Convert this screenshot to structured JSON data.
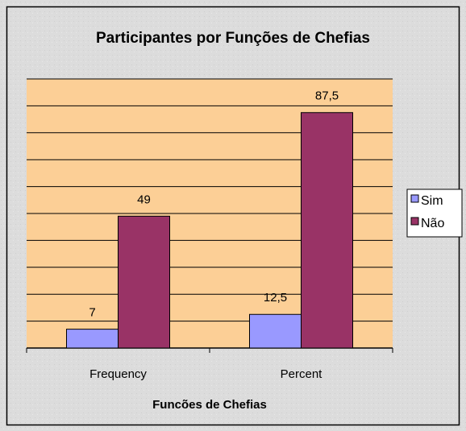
{
  "chart_data": {
    "type": "bar",
    "title": "Participantes por Funções de Chefias",
    "x_label": "Funcões de Chefias",
    "categories": [
      "Frequency",
      "Percent"
    ],
    "series": [
      {
        "name": "Sim",
        "color": "#9999ff",
        "values": [
          7,
          12.5
        ],
        "value_labels": [
          "7",
          "12,5"
        ]
      },
      {
        "name": "Não",
        "color": "#993366",
        "values": [
          49,
          87.5
        ],
        "value_labels": [
          "49",
          "87,5"
        ]
      }
    ],
    "ylim": [
      0,
      100
    ],
    "yticks": [
      0,
      10,
      20,
      30,
      40,
      50,
      60,
      70,
      80,
      90,
      100
    ],
    "grid": true,
    "legend": "right",
    "plot_background": "#fccf96"
  }
}
